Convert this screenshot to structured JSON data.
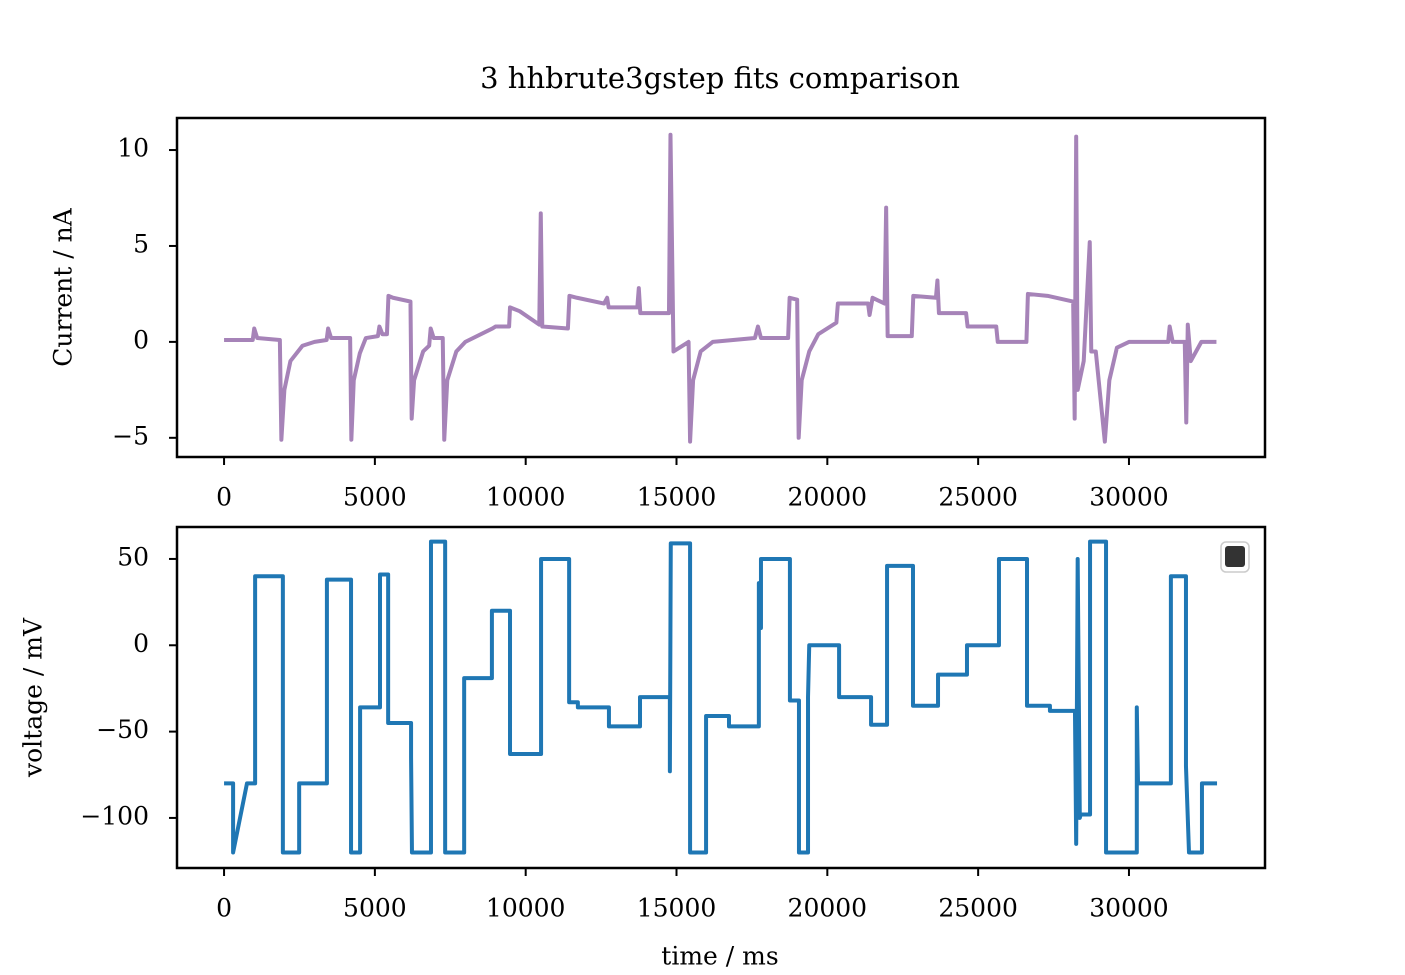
{
  "chart_data": [
    {
      "type": "line",
      "title": "3 hhbrute3gstep fits comparison",
      "ylabel": "Current / nA",
      "xlim": [
        -1560,
        34510
      ],
      "ylim": [
        -6,
        11.67
      ],
      "xticks": [
        0,
        5000,
        10000,
        15000,
        20000,
        25000,
        30000
      ],
      "yticks": [
        {
          "value": -5,
          "label": "−5"
        },
        0,
        5,
        10
      ],
      "x": [
        0,
        950,
        1000,
        1100,
        1850,
        1900,
        2000,
        2200,
        2600,
        3000,
        3400,
        3450,
        3550,
        4180,
        4220,
        4300,
        4500,
        4700,
        5100,
        5150,
        5250,
        5400,
        5450,
        5600,
        6180,
        6220,
        6300,
        6600,
        6800,
        6850,
        6950,
        7250,
        7300,
        7400,
        7700,
        8000,
        8900,
        9000,
        9450,
        9480,
        9800,
        10450,
        10500,
        10550,
        11400,
        11450,
        11700,
        12600,
        12700,
        12750,
        13700,
        13750,
        13800,
        14750,
        14800,
        14900,
        15400,
        15450,
        15550,
        15800,
        16200,
        17600,
        17700,
        17800,
        18700,
        18750,
        19000,
        19050,
        19150,
        19400,
        19700,
        20300,
        20350,
        21350,
        21400,
        21500,
        21900,
        21950,
        22000,
        22800,
        22850,
        23600,
        23650,
        23700,
        24600,
        24650,
        25600,
        25650,
        26600,
        26650,
        27300,
        28150,
        28200,
        28250,
        28300,
        28500,
        28700,
        28750,
        28900,
        29200,
        29350,
        29600,
        30000,
        31300,
        31350,
        31450,
        31850,
        31900,
        31950,
        32050,
        32400,
        32900
      ],
      "series": [
        {
          "color": "#a683b8",
          "values": [
            0.1,
            0.1,
            0.7,
            0.2,
            0.1,
            -5.1,
            -2.5,
            -1.0,
            -0.2,
            0,
            0.1,
            0.7,
            0.2,
            0.2,
            -5.1,
            -2,
            -0.6,
            0.2,
            0.3,
            0.8,
            0.4,
            0.4,
            2.4,
            2.3,
            2.1,
            -4,
            -2,
            -0.5,
            -0.2,
            0.7,
            0.2,
            0.2,
            -5.1,
            -2,
            -0.5,
            0,
            0.7,
            0.8,
            0.8,
            1.8,
            1.6,
            0.9,
            6.7,
            0.8,
            0.7,
            2.4,
            2.3,
            2.0,
            2.3,
            1.8,
            1.8,
            2.8,
            1.5,
            1.5,
            10.8,
            -0.5,
            0,
            -5.2,
            -2,
            -0.5,
            0,
            0.2,
            0.8,
            0.2,
            0.2,
            2.3,
            2.2,
            -5.0,
            -2,
            -0.5,
            0.4,
            1.0,
            2.0,
            2.0,
            1.4,
            2.3,
            2.0,
            7.0,
            0.3,
            0.3,
            2.4,
            2.3,
            3.2,
            1.5,
            1.5,
            0.8,
            0.8,
            0,
            0,
            2.5,
            2.4,
            2.1,
            -4,
            10.7,
            -2.5,
            -1,
            5.2,
            -0.5,
            -0.5,
            -5.2,
            -2,
            -0.3,
            0,
            0,
            0.8,
            0,
            0,
            -4.2,
            0.9,
            -1,
            0,
            0
          ]
        }
      ]
    },
    {
      "type": "line",
      "xlabel": "time / ms",
      "ylabel": "voltage / mV",
      "xlim": [
        -1560,
        34510
      ],
      "ylim": [
        -129,
        68.5
      ],
      "xticks": [
        0,
        5000,
        10000,
        15000,
        20000,
        25000,
        30000
      ],
      "yticks": [
        {
          "value": -100,
          "label": "−100"
        },
        {
          "value": -50,
          "label": "−50"
        },
        0,
        50
      ],
      "x": [
        0,
        300,
        300,
        760,
        1030,
        1030,
        1950,
        1950,
        2490,
        2490,
        3410,
        3410,
        4210,
        4210,
        4510,
        4510,
        5170,
        5170,
        5440,
        5440,
        6200,
        6200,
        6230,
        6860,
        6860,
        7330,
        7330,
        7960,
        7960,
        8880,
        8880,
        9480,
        9480,
        10510,
        10510,
        11440,
        11440,
        11730,
        11730,
        12760,
        12760,
        13790,
        13790,
        14780,
        14780,
        14810,
        15450,
        15450,
        15980,
        15980,
        16740,
        16740,
        17730,
        17730,
        17800,
        17800,
        18760,
        18760,
        19060,
        19060,
        19360,
        19360,
        19400,
        20390,
        20390,
        21450,
        21450,
        21980,
        21980,
        22840,
        22840,
        23670,
        23670,
        24630,
        24630,
        25690,
        25690,
        26620,
        26620,
        27380,
        27380,
        28210,
        28250,
        28300,
        28370,
        28400,
        28710,
        28710,
        29240,
        29240,
        30260,
        30260,
        30300,
        31390,
        31390,
        31890,
        31890,
        31990,
        32420,
        32420,
        32920
      ],
      "series": [
        {
          "color": "#1f77b4",
          "values": [
            -80,
            -80,
            -120,
            -80,
            -80,
            40,
            40,
            -120,
            -120,
            -80,
            -80,
            38,
            38,
            -120,
            -120,
            -36,
            -36,
            41,
            41,
            -45,
            -45,
            -65,
            -120,
            -120,
            60,
            60,
            -120,
            -120,
            -19,
            -19,
            20,
            20,
            -63,
            -63,
            50,
            50,
            -33,
            -33,
            -36,
            -36,
            -47,
            -47,
            -30,
            -30,
            -73,
            59,
            59,
            -120,
            -120,
            -41,
            -41,
            -47,
            -47,
            36,
            10,
            50,
            50,
            -32,
            -32,
            -120,
            -120,
            -30,
            0,
            0,
            -30,
            -30,
            -46,
            -46,
            46,
            46,
            -35,
            -35,
            -17,
            -17,
            0,
            0,
            50,
            50,
            -35,
            -35,
            -38,
            -38,
            -115,
            50,
            -100,
            -98,
            -98,
            60,
            60,
            -120,
            -120,
            -36,
            -80,
            -80,
            40,
            40,
            -70,
            -120,
            -120,
            -80,
            -80
          ]
        }
      ]
    }
  ]
}
